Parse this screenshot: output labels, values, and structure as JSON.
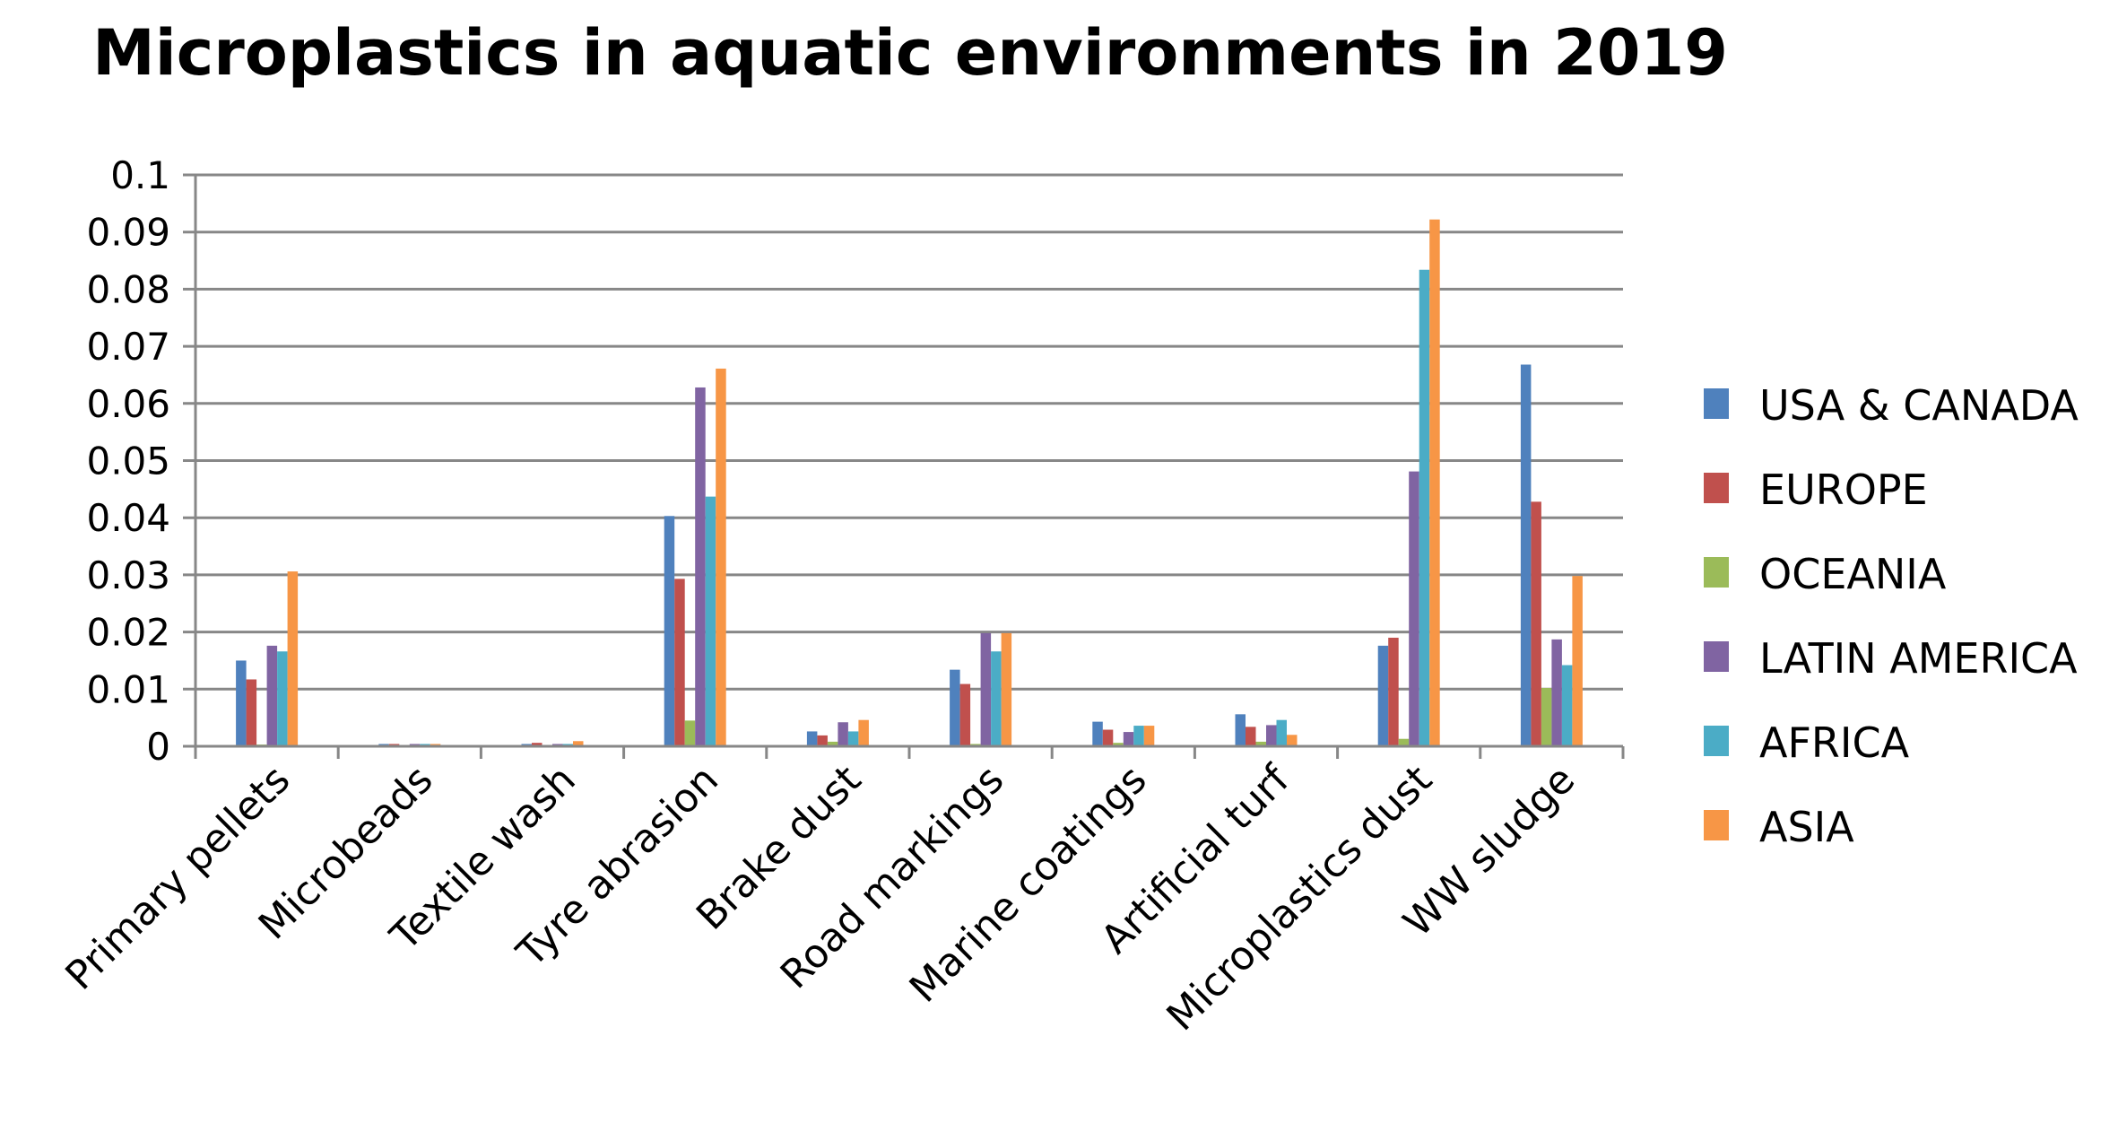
{
  "chart_data": {
    "type": "bar",
    "title": "Microplastics in aquatic environments  in 2019",
    "xlabel": "",
    "ylabel": "",
    "ylim": [
      0,
      0.1
    ],
    "yticks": [
      "0",
      "0.01",
      "0.02",
      "0.03",
      "0.04",
      "0.05",
      "0.06",
      "0.07",
      "0.08",
      "0.09",
      "0.1"
    ],
    "grid": true,
    "legend_position": "right",
    "categories": [
      "Primary pellets",
      "Microbeads",
      "Textile wash",
      "Tyre abrasion",
      "Brake dust",
      "Road markings",
      "Marine coatings",
      "Artificial turf",
      "Microplastics dust",
      "WW sludge"
    ],
    "series": [
      {
        "name": "USA & CANADA",
        "color": "#4f81bd",
        "values": [
          0.015,
          0.0004,
          0.0004,
          0.0403,
          0.0026,
          0.0134,
          0.0043,
          0.0056,
          0.0176,
          0.0668
        ]
      },
      {
        "name": "EUROPE",
        "color": "#c0504d",
        "values": [
          0.0117,
          0.0004,
          0.0006,
          0.0293,
          0.0019,
          0.0109,
          0.0029,
          0.0034,
          0.019,
          0.0428
        ]
      },
      {
        "name": "OCEANIA",
        "color": "#9bbb59",
        "values": [
          0.0003,
          0.0002,
          0.0002,
          0.0045,
          0.0008,
          0.0004,
          0.0006,
          0.0008,
          0.0013,
          0.0102
        ]
      },
      {
        "name": "LATIN AMERICA",
        "color": "#8064a2",
        "values": [
          0.0176,
          0.0004,
          0.0004,
          0.0628,
          0.0042,
          0.0198,
          0.0025,
          0.0037,
          0.0481,
          0.0187
        ]
      },
      {
        "name": "AFRICA",
        "color": "#4bacc6",
        "values": [
          0.0166,
          0.0004,
          0.0004,
          0.0437,
          0.0026,
          0.0166,
          0.0036,
          0.0046,
          0.0834,
          0.0142
        ]
      },
      {
        "name": "ASIA",
        "color": "#f79646",
        "values": [
          0.0306,
          0.0004,
          0.0009,
          0.0661,
          0.0046,
          0.0198,
          0.0036,
          0.002,
          0.0922,
          0.0298
        ]
      }
    ]
  },
  "colors": {
    "grid": "#878787",
    "axis": "#878787"
  }
}
